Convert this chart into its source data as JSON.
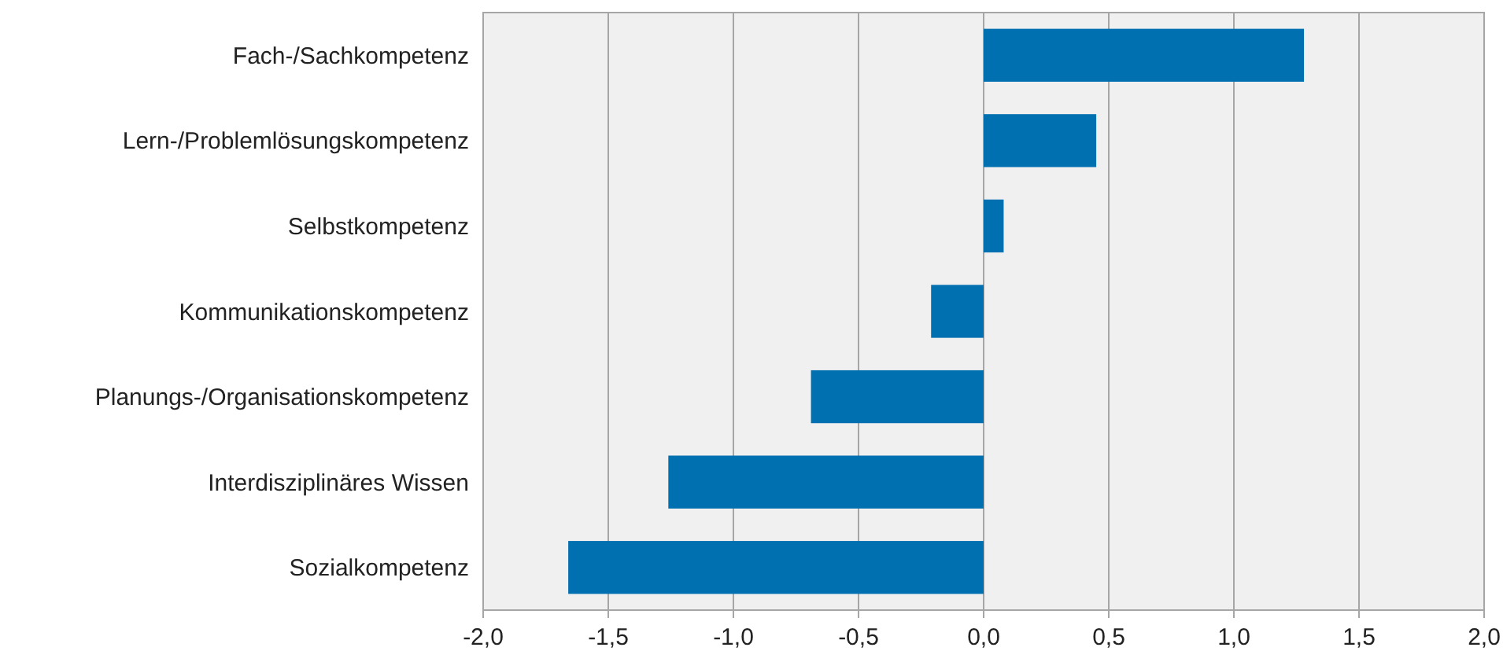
{
  "chart_data": {
    "type": "bar",
    "orientation": "horizontal",
    "categories": [
      "Fach-/Sachkompetenz",
      "Lern-/Problemlösungskompetenz",
      "Selbstkompetenz",
      "Kommunikationskompetenz",
      "Planungs-/Organisationskompetenz",
      "Interdisziplinäres Wissen",
      "Sozialkompetenz"
    ],
    "values": [
      1.28,
      0.45,
      0.08,
      -0.21,
      -0.69,
      -1.26,
      -1.66
    ],
    "color": "#0070b0",
    "xlim": [
      -2,
      2
    ],
    "xticks": [
      {
        "value": -2,
        "label": "-2,0"
      },
      {
        "value": -1.5,
        "label": "-1,5"
      },
      {
        "value": -1,
        "label": "-1,0"
      },
      {
        "value": -0.5,
        "label": "-0,5"
      },
      {
        "value": 0,
        "label": "0,0"
      },
      {
        "value": 0.5,
        "label": "0,5"
      },
      {
        "value": 1,
        "label": "1,0"
      },
      {
        "value": 1.5,
        "label": "1,5"
      },
      {
        "value": 2,
        "label": "2,0"
      }
    ],
    "grid": "x"
  }
}
